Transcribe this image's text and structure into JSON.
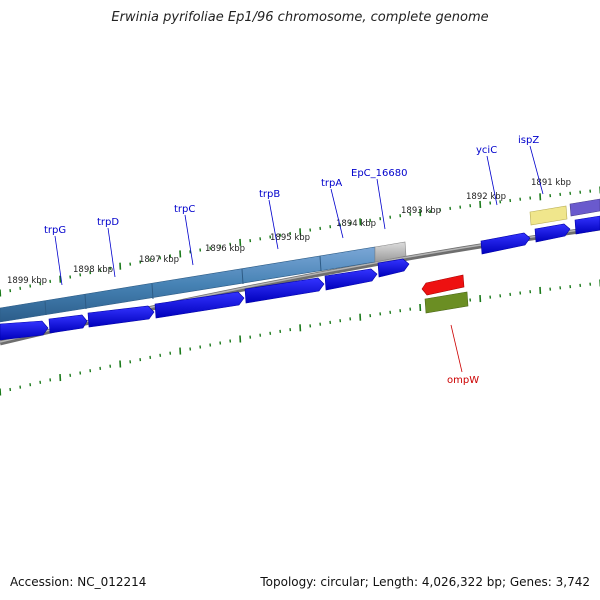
{
  "title": "Erwinia pyrifoliae Ep1/96 chromosome, complete genome",
  "footer": {
    "accession": "Accession: NC_012214",
    "summary": "Topology: circular; Length: 4,026,322 bp; Genes: 3,742"
  },
  "scale": {
    "labels": [
      "1899 kbp",
      "1898 kbp",
      "1897 kbp",
      "1896 kbp",
      "1895 kbp",
      "1894 kbp",
      "1893 kbp",
      "1892 kbp",
      "1891 kbp"
    ]
  },
  "genes": [
    {
      "name": "trpG",
      "color": "#0000cc"
    },
    {
      "name": "trpD",
      "color": "#0000cc"
    },
    {
      "name": "trpC",
      "color": "#0000cc"
    },
    {
      "name": "trpB",
      "color": "#0000cc"
    },
    {
      "name": "trpA",
      "color": "#0000cc"
    },
    {
      "name": "EpC_16680",
      "color": "#0000cc"
    },
    {
      "name": "yciC",
      "color": "#0000cc"
    },
    {
      "name": "ispZ",
      "color": "#0000cc"
    },
    {
      "name": "ompW",
      "color": "#cc0000"
    }
  ],
  "colors": {
    "backbone": "#808080",
    "cds_plus": "#0000ee",
    "operon": "#4682b4",
    "ticks": "#1a7a1a",
    "ompW_gene": "#ee0000",
    "ompW_cds": "#6b8e23",
    "ispZ_gene": "#f0e68c",
    "ispZ_cds": "#6a5acd",
    "pseudo": "#b0b0b0"
  }
}
